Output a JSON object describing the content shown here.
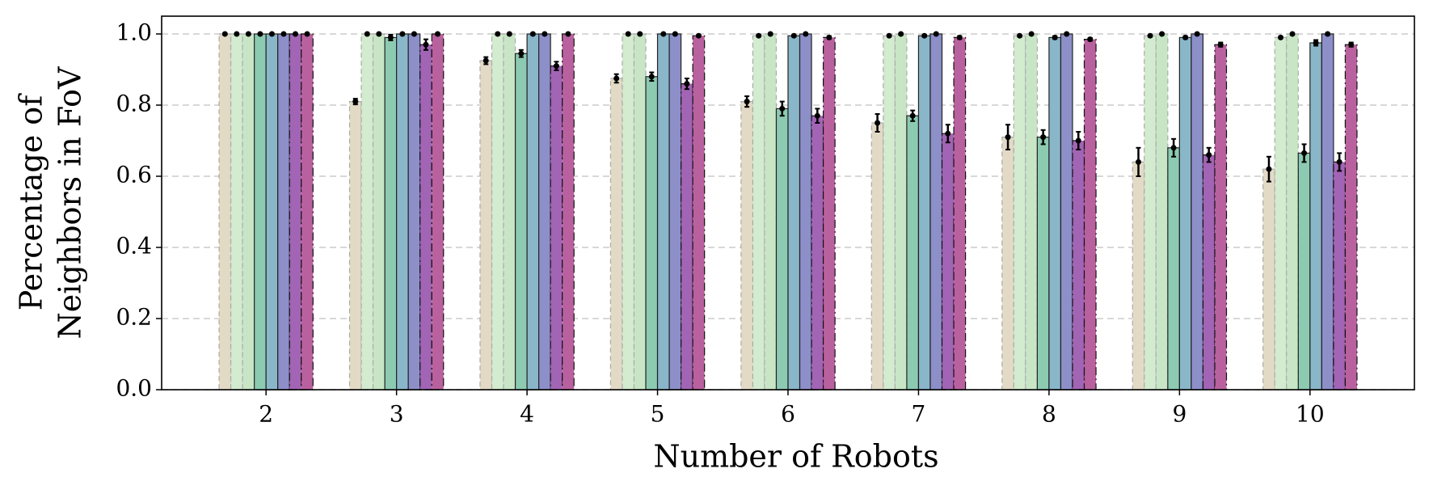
{
  "chart_data": {
    "type": "bar",
    "xlabel": "Number of Robots",
    "ylabel": [
      "Percentage of",
      "Neighbors in FoV"
    ],
    "categories": [
      "2",
      "3",
      "4",
      "5",
      "6",
      "7",
      "8",
      "9",
      "10"
    ],
    "ylim": [
      0,
      1.05
    ],
    "yticks": [
      {
        "value": 0,
        "label": "0.0"
      },
      0.2,
      0.4,
      0.6,
      0.8,
      {
        "value": 1,
        "label": "1.0"
      }
    ],
    "grid": true,
    "series": [
      {
        "color": "#e3dac6",
        "linestyle": "dashed",
        "values": [
          1.0,
          0.81,
          0.925,
          0.875,
          0.81,
          0.75,
          0.71,
          0.64,
          0.62
        ],
        "errors": [
          0.002,
          0.008,
          0.01,
          0.012,
          0.015,
          0.025,
          0.035,
          0.04,
          0.035
        ]
      },
      {
        "color": "#d3ebcf",
        "linestyle": "dashed",
        "values": [
          1.0,
          1.0,
          1.0,
          1.0,
          0.995,
          0.995,
          0.995,
          0.995,
          0.99
        ],
        "errors": [
          0.002,
          0.002,
          0.002,
          0.002,
          0.003,
          0.003,
          0.003,
          0.003,
          0.003
        ]
      },
      {
        "color": "#c8e6c6",
        "linestyle": "dashed",
        "values": [
          1.0,
          1.0,
          1.0,
          1.0,
          1.0,
          1.0,
          1.0,
          1.0,
          1.0
        ],
        "errors": [
          0.002,
          0.002,
          0.002,
          0.002,
          0.002,
          0.002,
          0.002,
          0.002,
          0.002
        ]
      },
      {
        "color": "#8ccab2",
        "linestyle": "solid",
        "values": [
          1.0,
          0.99,
          0.945,
          0.88,
          0.79,
          0.77,
          0.71,
          0.68,
          0.665
        ],
        "errors": [
          0.002,
          0.008,
          0.01,
          0.012,
          0.02,
          0.015,
          0.02,
          0.025,
          0.025
        ]
      },
      {
        "color": "#8ab6c9",
        "linestyle": "solid",
        "values": [
          1.0,
          1.0,
          1.0,
          1.0,
          0.995,
          0.995,
          0.99,
          0.99,
          0.975
        ],
        "errors": [
          0.002,
          0.002,
          0.002,
          0.002,
          0.003,
          0.003,
          0.004,
          0.004,
          0.008
        ]
      },
      {
        "color": "#8d8fc9",
        "linestyle": "solid",
        "values": [
          1.0,
          1.0,
          1.0,
          1.0,
          1.0,
          1.0,
          1.0,
          1.0,
          1.0
        ],
        "errors": [
          0.002,
          0.002,
          0.002,
          0.002,
          0.002,
          0.002,
          0.002,
          0.002,
          0.002
        ]
      },
      {
        "color": "#a264b4",
        "linestyle": "dashdot",
        "values": [
          1.0,
          0.97,
          0.91,
          0.86,
          0.77,
          0.72,
          0.7,
          0.66,
          0.64
        ],
        "errors": [
          0.002,
          0.015,
          0.012,
          0.015,
          0.02,
          0.025,
          0.025,
          0.02,
          0.025
        ]
      },
      {
        "color": "#b9619e",
        "linestyle": "dashdot",
        "values": [
          1.0,
          1.0,
          1.0,
          0.995,
          0.99,
          0.99,
          0.985,
          0.97,
          0.97
        ],
        "errors": [
          0.002,
          0.002,
          0.002,
          0.003,
          0.004,
          0.004,
          0.004,
          0.006,
          0.006
        ]
      }
    ]
  }
}
